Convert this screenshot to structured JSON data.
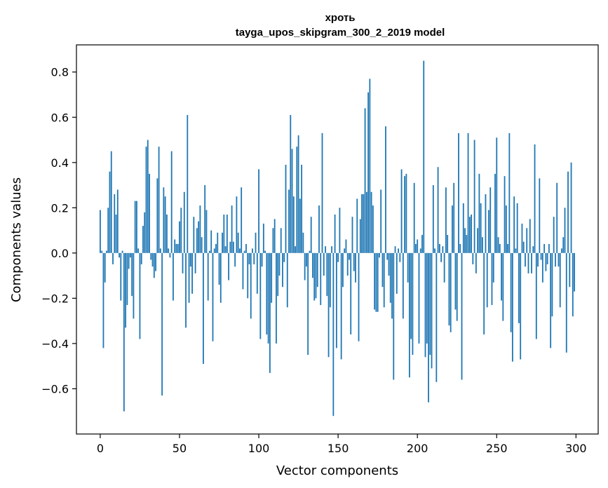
{
  "chart_data": {
    "type": "bar",
    "title": "хроть",
    "subtitle": "tayga_upos_skipgram_300_2_2019 model",
    "xlabel": "Vector components",
    "ylabel": "Components values",
    "xlim": [
      -15,
      314
    ],
    "ylim": [
      -0.8,
      0.92
    ],
    "xticks": [
      0,
      50,
      100,
      150,
      200,
      250,
      300
    ],
    "xtick_labels": [
      "0",
      "50",
      "100",
      "150",
      "200",
      "250",
      "300"
    ],
    "yticks": [
      -0.6,
      -0.4,
      -0.2,
      0.0,
      0.2,
      0.4,
      0.6,
      0.8
    ],
    "ytick_labels": [
      "−0.6",
      "−0.4",
      "−0.2",
      "0.0",
      "0.2",
      "0.4",
      "0.6",
      "0.8"
    ],
    "bar_color": "#1f77b4",
    "grid": false,
    "values": [
      0.19,
      0.01,
      -0.42,
      -0.13,
      0.01,
      0.2,
      0.36,
      0.45,
      -0.05,
      0.26,
      0.17,
      0.28,
      -0.02,
      -0.21,
      0.01,
      -0.7,
      -0.33,
      -0.23,
      -0.07,
      -0.02,
      -0.19,
      -0.29,
      0.23,
      0.23,
      0.02,
      -0.38,
      -0.05,
      0.12,
      0.18,
      0.47,
      0.5,
      0.35,
      -0.03,
      -0.06,
      -0.11,
      -0.08,
      0.33,
      0.47,
      0.02,
      -0.63,
      0.29,
      0.25,
      0.17,
      0.02,
      -0.02,
      0.45,
      -0.21,
      0.06,
      0.04,
      0.04,
      0.14,
      0.2,
      -0.09,
      0.27,
      -0.33,
      0.61,
      -0.22,
      -0.06,
      -0.18,
      0.16,
      -0.09,
      0.11,
      0.14,
      0.21,
      0.07,
      -0.49,
      0.3,
      0.19,
      -0.21,
      0.01,
      0.1,
      -0.39,
      0.02,
      0.04,
      0.09,
      -0.14,
      -0.22,
      0.09,
      0.17,
      0.03,
      0.17,
      -0.12,
      0.05,
      0.21,
      0.05,
      -0.06,
      0.25,
      0.09,
      0.02,
      0.29,
      -0.16,
      0.01,
      0.04,
      -0.2,
      -0.05,
      -0.29,
      0.02,
      -0.05,
      0.09,
      -0.18,
      0.37,
      -0.38,
      -0.06,
      0.13,
      0.01,
      -0.36,
      -0.4,
      -0.53,
      -0.22,
      0.11,
      0.15,
      -0.4,
      -0.19,
      -0.1,
      0.11,
      -0.15,
      -0.04,
      0.39,
      -0.24,
      0.28,
      0.61,
      0.46,
      0.25,
      0.03,
      0.47,
      0.52,
      0.24,
      0.39,
      0.09,
      -0.12,
      -0.06,
      -0.45,
      0.01,
      0.16,
      -0.11,
      -0.21,
      -0.2,
      -0.15,
      0.21,
      -0.23,
      0.53,
      -0.1,
      0.03,
      -0.19,
      -0.46,
      -0.24,
      0.03,
      -0.72,
      0.17,
      -0.42,
      -0.04,
      0.2,
      -0.47,
      -0.15,
      0.02,
      0.06,
      -0.1,
      -0.03,
      -0.36,
      0.16,
      -0.08,
      -0.13,
      0.24,
      -0.39,
      0.15,
      0.26,
      0.26,
      0.64,
      0.27,
      0.71,
      0.77,
      0.27,
      0.21,
      -0.25,
      -0.26,
      -0.26,
      -0.02,
      0.28,
      -0.15,
      -0.24,
      0.56,
      -0.03,
      -0.1,
      -0.22,
      -0.29,
      -0.56,
      0.03,
      -0.18,
      0.02,
      -0.04,
      0.37,
      -0.29,
      0.34,
      0.35,
      -0.13,
      -0.55,
      -0.38,
      -0.45,
      0.31,
      0.04,
      0.06,
      -0.4,
      0.02,
      0.08,
      0.85,
      -0.46,
      -0.4,
      -0.66,
      -0.45,
      -0.51,
      0.3,
      0.02,
      -0.57,
      0.38,
      0.04,
      -0.04,
      0.03,
      -0.13,
      0.29,
      0.08,
      -0.32,
      -0.35,
      0.21,
      0.31,
      -0.25,
      -0.3,
      0.53,
      0.04,
      -0.56,
      0.22,
      0.11,
      0.08,
      0.53,
      0.16,
      0.17,
      -0.05,
      0.5,
      -0.09,
      0.11,
      0.35,
      0.22,
      0.07,
      -0.36,
      0.26,
      -0.24,
      0.19,
      0.29,
      -0.23,
      -0.13,
      0.35,
      0.51,
      0.07,
      0.04,
      -0.21,
      -0.3,
      0.34,
      0.21,
      0.04,
      0.53,
      -0.35,
      -0.48,
      0.25,
      0.02,
      0.22,
      -0.31,
      -0.47,
      0.13,
      0.05,
      -0.06,
      0.11,
      -0.09,
      0.15,
      -0.09,
      0.03,
      0.48,
      -0.38,
      -0.06,
      0.33,
      -0.03,
      -0.13,
      0.04,
      -0.08,
      -0.05,
      0.04,
      -0.42,
      -0.28,
      0.16,
      -0.06,
      0.31,
      -0.06,
      -0.24,
      0.02,
      0.07,
      0.2,
      -0.44,
      0.36,
      -0.15,
      0.4,
      -0.28,
      -0.17
    ]
  }
}
